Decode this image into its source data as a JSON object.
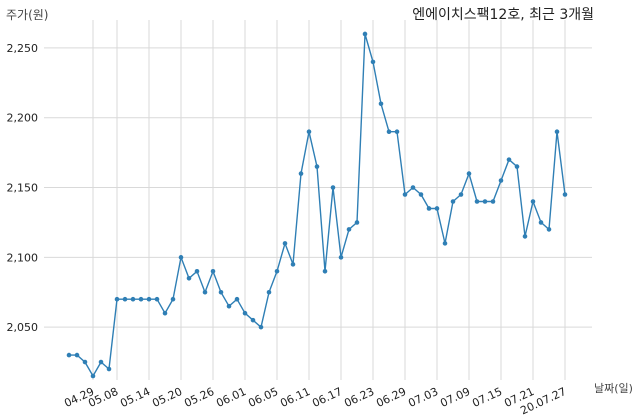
{
  "chart_data": {
    "type": "line",
    "title": "엔에이치스팩12호, 최근 3개월",
    "ylabel": "주가(원)",
    "xlabel": "날짜(일)",
    "ylim": [
      2010,
      2270
    ],
    "yticks": [
      2050,
      2100,
      2150,
      2200,
      2250
    ],
    "ytick_labels": [
      "2,050",
      "2,100",
      "2,150",
      "2,200",
      "2,250"
    ],
    "xtick_labels": [
      "04.29",
      "05.08",
      "05.14",
      "05.20",
      "05.26",
      "06.01",
      "06.05",
      "06.11",
      "06.17",
      "06.23",
      "06.29",
      "07.03",
      "07.09",
      "07.15",
      "07.21",
      "20.07.27"
    ],
    "xtick_positions": [
      3,
      6,
      10,
      14,
      18,
      22,
      26,
      30,
      34,
      38,
      42,
      46,
      50,
      54,
      58,
      62
    ],
    "grid": true,
    "color": "#2f7fb5",
    "series": [
      {
        "values": [
          2030,
          2030,
          2025,
          2015,
          2025,
          2020,
          2070,
          2070,
          2070,
          2070,
          2070,
          2070,
          2060,
          2070,
          2100,
          2085,
          2090,
          2075,
          2090,
          2075,
          2065,
          2070,
          2060,
          2055,
          2050,
          2075,
          2090,
          2110,
          2095,
          2160,
          2190,
          2165,
          2090,
          2150,
          2100,
          2120,
          2125,
          2260,
          2240,
          2210,
          2190,
          2190,
          2145,
          2150,
          2145,
          2135,
          2135,
          2110,
          2140,
          2145,
          2160,
          2140,
          2140,
          2140,
          2155,
          2170,
          2165,
          2115,
          2140,
          2125,
          2120,
          2190,
          2145
        ]
      }
    ]
  }
}
